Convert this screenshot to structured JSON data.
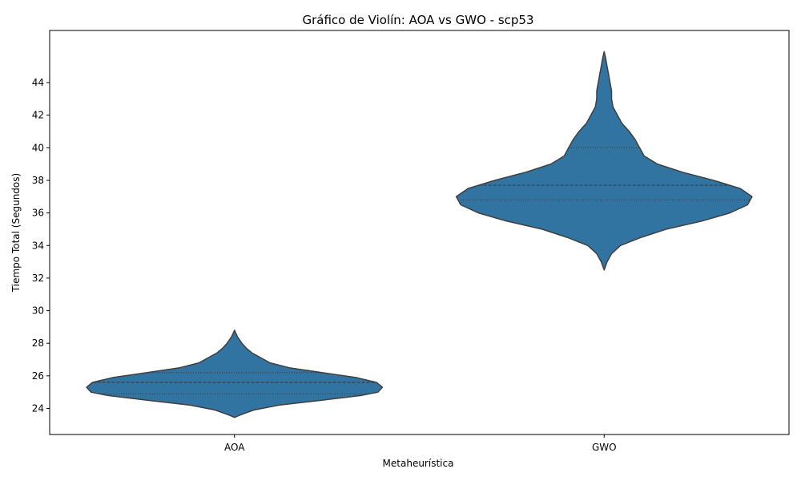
{
  "chart_data": {
    "type": "violin",
    "title": "Gráfico de Violín: AOA vs GWO - scp53",
    "xlabel": "Metaheurística",
    "ylabel": "Tiempo Total (Segundos)",
    "categories": [
      "AOA",
      "GWO"
    ],
    "ylim": [
      22.4,
      47.2
    ],
    "yticks": [
      24,
      26,
      28,
      30,
      32,
      34,
      36,
      38,
      40,
      42,
      44
    ],
    "grid": false,
    "color": "#3274a1",
    "edge_color": "#3f3f3f",
    "series": [
      {
        "category": "AOA",
        "min": 23.4,
        "max": 28.8,
        "quartiles": {
          "q1": 24.9,
          "median": 25.6,
          "q3": 26.2
        },
        "density_profile": [
          [
            23.45,
            0.0
          ],
          [
            23.6,
            0.04
          ],
          [
            23.9,
            0.13
          ],
          [
            24.2,
            0.3
          ],
          [
            24.5,
            0.59
          ],
          [
            24.8,
            0.86
          ],
          [
            25.0,
            0.97
          ],
          [
            25.3,
            1.0
          ],
          [
            25.6,
            0.96
          ],
          [
            25.9,
            0.82
          ],
          [
            26.2,
            0.59
          ],
          [
            26.5,
            0.37
          ],
          [
            26.8,
            0.24
          ],
          [
            27.1,
            0.18
          ],
          [
            27.4,
            0.12
          ],
          [
            27.7,
            0.08
          ],
          [
            28.0,
            0.05
          ],
          [
            28.4,
            0.02
          ],
          [
            28.8,
            0.0
          ]
        ]
      },
      {
        "category": "GWO",
        "min": 32.5,
        "max": 45.9,
        "quartiles": {
          "q1": 36.8,
          "median": 37.7,
          "q3": 40.0
        },
        "density_profile": [
          [
            32.5,
            0.0
          ],
          [
            33.0,
            0.02
          ],
          [
            33.5,
            0.05
          ],
          [
            34.0,
            0.11
          ],
          [
            34.5,
            0.25
          ],
          [
            35.0,
            0.42
          ],
          [
            35.5,
            0.66
          ],
          [
            36.0,
            0.85
          ],
          [
            36.5,
            0.97
          ],
          [
            37.0,
            1.0
          ],
          [
            37.5,
            0.92
          ],
          [
            38.0,
            0.74
          ],
          [
            38.5,
            0.53
          ],
          [
            39.0,
            0.36
          ],
          [
            39.5,
            0.27
          ],
          [
            40.0,
            0.24
          ],
          [
            40.5,
            0.21
          ],
          [
            41.0,
            0.17
          ],
          [
            41.5,
            0.12
          ],
          [
            42.0,
            0.09
          ],
          [
            42.5,
            0.06
          ],
          [
            43.0,
            0.05
          ],
          [
            43.5,
            0.05
          ],
          [
            44.0,
            0.04
          ],
          [
            44.5,
            0.03
          ],
          [
            45.0,
            0.02
          ],
          [
            45.5,
            0.01
          ],
          [
            45.9,
            0.0
          ]
        ]
      }
    ]
  }
}
